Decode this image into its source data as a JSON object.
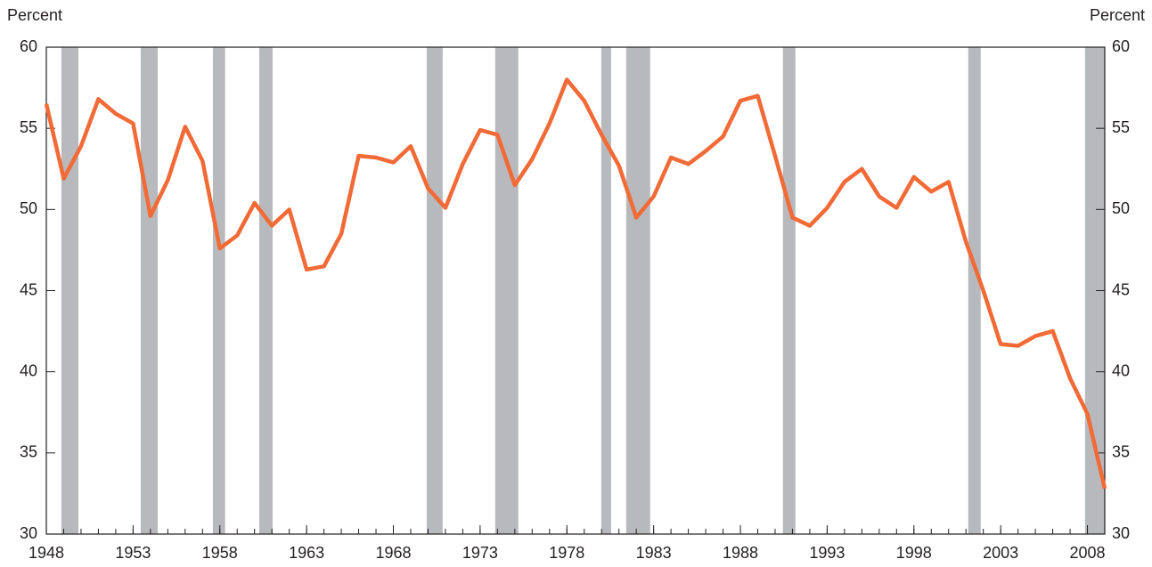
{
  "chart_data": {
    "type": "line",
    "ylabel": "Percent",
    "y2label": "Percent",
    "x": [
      1948,
      1949,
      1950,
      1951,
      1952,
      1953,
      1954,
      1955,
      1956,
      1957,
      1958,
      1959,
      1960,
      1961,
      1962,
      1963,
      1964,
      1965,
      1966,
      1967,
      1968,
      1969,
      1970,
      1971,
      1972,
      1973,
      1974,
      1975,
      1976,
      1977,
      1978,
      1979,
      1980,
      1981,
      1982,
      1983,
      1984,
      1985,
      1986,
      1987,
      1988,
      1989,
      1990,
      1991,
      1992,
      1993,
      1994,
      1995,
      1996,
      1997,
      1998,
      1999,
      2000,
      2001,
      2002,
      2003,
      2004,
      2005,
      2006,
      2007,
      2008,
      2009
    ],
    "series": [
      {
        "color": "#f26a36",
        "values": [
          56.5,
          51.9,
          53.9,
          56.8,
          55.9,
          55.3,
          49.6,
          51.8,
          55.1,
          53.0,
          47.6,
          48.4,
          50.4,
          49.0,
          50.0,
          46.3,
          46.5,
          48.5,
          53.3,
          53.2,
          52.9,
          53.9,
          51.3,
          50.1,
          52.8,
          54.9,
          54.6,
          51.5,
          53.1,
          55.3,
          58.0,
          56.7,
          54.6,
          52.7,
          49.5,
          50.8,
          53.2,
          52.8,
          53.6,
          54.5,
          56.7,
          57.0,
          53.3,
          49.5,
          49.0,
          50.1,
          51.7,
          52.5,
          50.8,
          50.1,
          52.0,
          51.1,
          51.7,
          48.0,
          45.0,
          41.7,
          41.6,
          42.2,
          42.5,
          39.6,
          37.4,
          32.8
        ]
      }
    ],
    "recessions": [
      [
        1948.87,
        1949.85
      ],
      [
        1953.44,
        1954.42
      ],
      [
        1957.6,
        1958.3
      ],
      [
        1960.27,
        1961.04
      ],
      [
        1969.92,
        1970.84
      ],
      [
        1973.87,
        1975.2
      ],
      [
        1979.98,
        1980.55
      ],
      [
        1981.42,
        1982.8
      ],
      [
        1990.45,
        1991.17
      ],
      [
        2001.13,
        2001.85
      ],
      [
        2007.86,
        2009
      ]
    ],
    "recession_color": "#b8b9bd",
    "xlim": [
      1948,
      2009
    ],
    "xticks": [
      1948,
      1953,
      1958,
      1963,
      1968,
      1973,
      1978,
      1983,
      1988,
      1993,
      1998,
      2003,
      2008
    ],
    "ylim": [
      30,
      60
    ],
    "yticks": [
      30,
      35,
      40,
      45,
      50,
      55,
      60
    ],
    "y2lim": [
      30,
      60
    ],
    "y2ticks": [
      30,
      35,
      40,
      45,
      50,
      55,
      60
    ]
  }
}
